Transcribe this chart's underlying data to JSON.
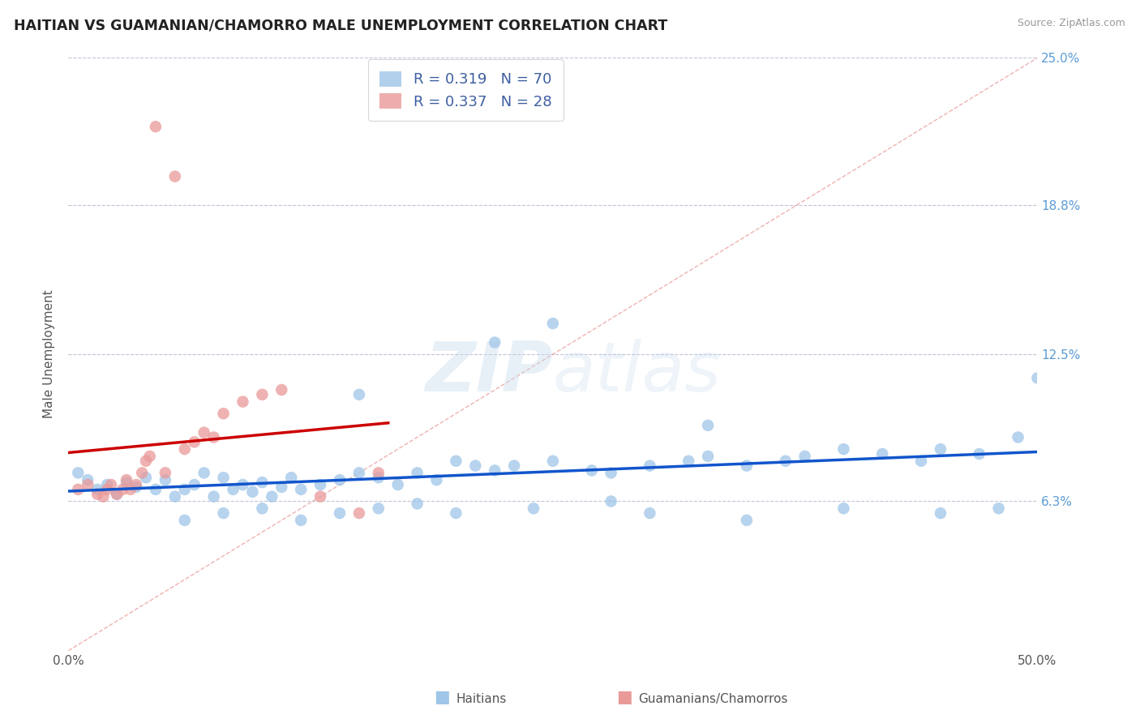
{
  "title": "HAITIAN VS GUAMANIAN/CHAMORRO MALE UNEMPLOYMENT CORRELATION CHART",
  "source": "Source: ZipAtlas.com",
  "legend_label1": "Haitians",
  "legend_label2": "Guamanians/Chamorros",
  "ylabel": "Male Unemployment",
  "r_haitian": 0.319,
  "n_haitian": 70,
  "r_guamanian": 0.337,
  "n_guamanian": 28,
  "blue_dot_color": "#9fc5e8",
  "pink_dot_color": "#ea9999",
  "trend_blue": "#1155cc",
  "trend_pink": "#cc0000",
  "diagonal_color": "#e06666",
  "background_color": "#ffffff",
  "grid_color": "#aaaacc",
  "xmin": 0.0,
  "xmax": 0.5,
  "ymin": 0.0,
  "ymax": 0.25,
  "ytick_pos": [
    0.0,
    0.063,
    0.125,
    0.188,
    0.25
  ],
  "ytick_labels": [
    "",
    "6.3%",
    "12.5%",
    "18.8%",
    "25.0%"
  ],
  "blue_x": [
    0.005,
    0.01,
    0.015,
    0.02,
    0.025,
    0.03,
    0.035,
    0.04,
    0.045,
    0.05,
    0.055,
    0.06,
    0.065,
    0.07,
    0.075,
    0.08,
    0.085,
    0.09,
    0.095,
    0.1,
    0.105,
    0.11,
    0.115,
    0.12,
    0.13,
    0.14,
    0.15,
    0.16,
    0.17,
    0.18,
    0.19,
    0.2,
    0.21,
    0.22,
    0.23,
    0.25,
    0.27,
    0.28,
    0.3,
    0.32,
    0.33,
    0.35,
    0.37,
    0.38,
    0.4,
    0.42,
    0.44,
    0.45,
    0.47,
    0.49,
    0.06,
    0.08,
    0.1,
    0.12,
    0.14,
    0.16,
    0.18,
    0.2,
    0.24,
    0.28,
    0.3,
    0.35,
    0.4,
    0.45,
    0.48,
    0.5,
    0.25,
    0.33,
    0.22,
    0.15
  ],
  "blue_y": [
    0.075,
    0.072,
    0.068,
    0.07,
    0.066,
    0.071,
    0.069,
    0.073,
    0.068,
    0.072,
    0.065,
    0.068,
    0.07,
    0.075,
    0.065,
    0.073,
    0.068,
    0.07,
    0.067,
    0.071,
    0.065,
    0.069,
    0.073,
    0.068,
    0.07,
    0.072,
    0.075,
    0.073,
    0.07,
    0.075,
    0.072,
    0.08,
    0.078,
    0.076,
    0.078,
    0.08,
    0.076,
    0.075,
    0.078,
    0.08,
    0.082,
    0.078,
    0.08,
    0.082,
    0.085,
    0.083,
    0.08,
    0.085,
    0.083,
    0.09,
    0.055,
    0.058,
    0.06,
    0.055,
    0.058,
    0.06,
    0.062,
    0.058,
    0.06,
    0.063,
    0.058,
    0.055,
    0.06,
    0.058,
    0.06,
    0.115,
    0.138,
    0.095,
    0.13,
    0.108
  ],
  "pink_x": [
    0.005,
    0.01,
    0.015,
    0.018,
    0.02,
    0.022,
    0.025,
    0.028,
    0.03,
    0.032,
    0.035,
    0.038,
    0.04,
    0.042,
    0.045,
    0.05,
    0.055,
    0.06,
    0.065,
    0.07,
    0.075,
    0.08,
    0.09,
    0.1,
    0.11,
    0.13,
    0.15,
    0.16
  ],
  "pink_y": [
    0.068,
    0.07,
    0.066,
    0.065,
    0.068,
    0.07,
    0.066,
    0.068,
    0.072,
    0.068,
    0.07,
    0.075,
    0.08,
    0.082,
    0.221,
    0.075,
    0.2,
    0.085,
    0.088,
    0.092,
    0.09,
    0.1,
    0.105,
    0.108,
    0.11,
    0.065,
    0.058,
    0.075
  ]
}
